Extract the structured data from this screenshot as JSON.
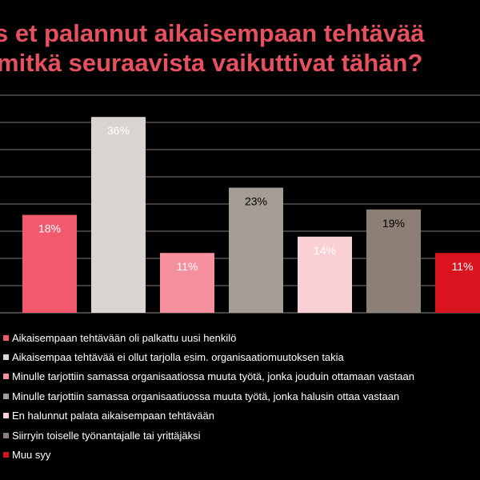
{
  "title": {
    "line1": "s et palannut aikaisempaan tehtävää",
    "line2": "mitkä seuraavista vaikuttivat tähän?"
  },
  "chart_data": {
    "type": "bar",
    "title": "s et palannut aikaisempaan tehtävää mitkä seuraavista vaikuttivat tähän?",
    "ylim": [
      0,
      40
    ],
    "grid": true,
    "legend_position": "bottom",
    "categories": [
      "Aikaisempaan tehtävään oli palkattu uusi henkilö",
      "Aikaisempaa tehtävää ei ollut tarjolla esim. organisaatiomuutoksen takia",
      "Minulle tarjottiin samassa organisaatiossa muuta työtä, jonka jouduin ottamaan vastaan",
      "Minulle tarjottiin samassa organisaatiuossa muuta työtä, jonka halusin ottaa vastaan",
      "En halunnut palata aikaisempaan tehtävään",
      "Siirryin toiselle työnantajalle tai yrittäjäksi",
      "Muu syy"
    ],
    "values": [
      18,
      36,
      11,
      23,
      14,
      19,
      11
    ],
    "labels": [
      "18%",
      "36%",
      "11%",
      "23%",
      "14%",
      "19%",
      "11%"
    ],
    "colors": [
      "#f15a6c",
      "#d9d4cf",
      "#f7909e",
      "#a59c94",
      "#fbd0d4",
      "#8b7f76",
      "#d9141f"
    ],
    "label_colors": [
      "#ffffff",
      "#ffffff",
      "#ffffff",
      "#000000",
      "#ffffff",
      "#000000",
      "#ffffff"
    ]
  }
}
